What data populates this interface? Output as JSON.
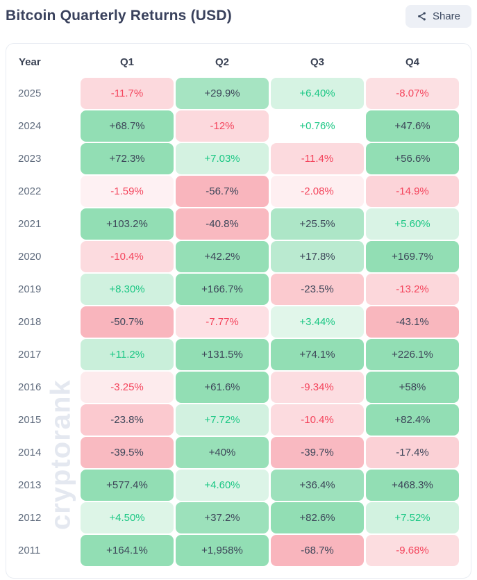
{
  "header": {
    "title": "Bitcoin Quarterly Returns (USD)",
    "share_label": "Share"
  },
  "watermark_text": "cryptorank",
  "chart_data": {
    "type": "heatmap",
    "title": "Bitcoin Quarterly Returns (USD)",
    "columns": [
      "Year",
      "Q1",
      "Q2",
      "Q3",
      "Q4"
    ],
    "rows": [
      {
        "year": "2025",
        "values": [
          "-11.7%",
          "+29.9%",
          "+6.40%",
          "-8.07%"
        ]
      },
      {
        "year": "2024",
        "values": [
          "+68.7%",
          "-12%",
          "+0.76%",
          "+47.6%"
        ]
      },
      {
        "year": "2023",
        "values": [
          "+72.3%",
          "+7.03%",
          "-11.4%",
          "+56.6%"
        ]
      },
      {
        "year": "2022",
        "values": [
          "-1.59%",
          "-56.7%",
          "-2.08%",
          "-14.9%"
        ]
      },
      {
        "year": "2021",
        "values": [
          "+103.2%",
          "-40.8%",
          "+25.5%",
          "+5.60%"
        ]
      },
      {
        "year": "2020",
        "values": [
          "-10.4%",
          "+42.2%",
          "+17.8%",
          "+169.7%"
        ]
      },
      {
        "year": "2019",
        "values": [
          "+8.30%",
          "+166.7%",
          "-23.5%",
          "-13.2%"
        ]
      },
      {
        "year": "2018",
        "values": [
          "-50.7%",
          "-7.77%",
          "+3.44%",
          "-43.1%"
        ]
      },
      {
        "year": "2017",
        "values": [
          "+11.2%",
          "+131.5%",
          "+74.1%",
          "+226.1%"
        ]
      },
      {
        "year": "2016",
        "values": [
          "-3.25%",
          "+61.6%",
          "-9.34%",
          "+58%"
        ]
      },
      {
        "year": "2015",
        "values": [
          "-23.8%",
          "+7.72%",
          "-10.4%",
          "+82.4%"
        ]
      },
      {
        "year": "2014",
        "values": [
          "-39.5%",
          "+40%",
          "-39.7%",
          "-17.4%"
        ]
      },
      {
        "year": "2013",
        "values": [
          "+577.4%",
          "+4.60%",
          "+36.4%",
          "+468.3%"
        ]
      },
      {
        "year": "2012",
        "values": [
          "+4.50%",
          "+37.2%",
          "+82.6%",
          "+7.52%"
        ]
      },
      {
        "year": "2011",
        "values": [
          "+164.1%",
          "+1,958%",
          "-68.7%",
          "-9.68%"
        ]
      }
    ],
    "legend_position": "none",
    "grid": false
  },
  "colors": {
    "positive_base": "#92deb4",
    "negative_base": "#f9b5bd",
    "positive_text": "#1bc784",
    "negative_text": "#f4445c",
    "dark_cell_text": "#3d4659",
    "title_text": "#39415c",
    "year_text": "#5f6b7d",
    "card_border": "#e8ecf2",
    "share_bg": "#edf0f6",
    "watermark": "#e4e8f0"
  }
}
